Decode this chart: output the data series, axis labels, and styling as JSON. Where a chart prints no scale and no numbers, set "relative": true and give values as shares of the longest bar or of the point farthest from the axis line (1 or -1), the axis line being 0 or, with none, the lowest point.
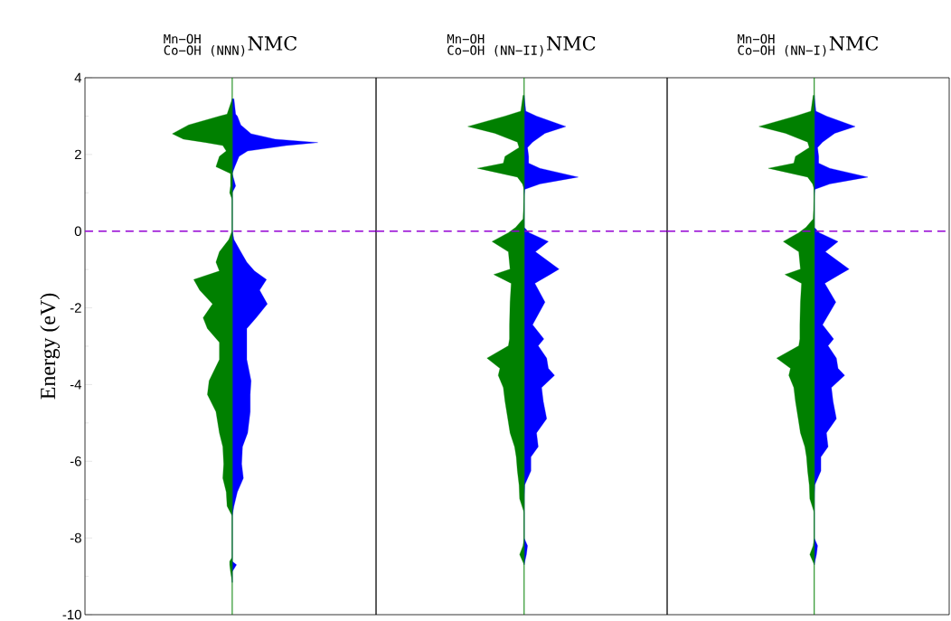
{
  "chart_data": [
    {
      "type": "area",
      "orientation": "horizontal",
      "relative": true,
      "title": "{}^{\\hbox{\\fontsize{14}{14}\\selectfont\\texttt{Mn−OH}}}_{\\hbox{\\fontsize{14}{14}\\selectfont\\texttt{Co−OH (NNN)}}}\\hbox{NMC}",
      "ylabel": "Energy (eV)",
      "ylim": [
        -10,
        4
      ],
      "yticks": [
        -10,
        -8,
        -6,
        -4,
        -2,
        0,
        2,
        4
      ],
      "tick_labels": "y",
      "x": [
        3.45,
        3.05,
        3.0,
        2.77,
        2.54,
        2.4,
        2.31,
        2.23,
        2.09,
        1.95,
        1.68,
        1.5,
        1.18,
        1.0,
        0.82,
        0.02,
        -0.22,
        -0.54,
        -0.81,
        -1.04,
        -1.26,
        -1.54,
        -1.9,
        -2.26,
        -2.54,
        -2.9,
        -3.35,
        -3.9,
        -4.26,
        -4.71,
        -5.26,
        -5.62,
        -6.07,
        -6.44,
        -6.8,
        -7.17,
        -7.43,
        -8.5,
        -8.61,
        -8.7,
        -8.88,
        -9.16
      ],
      "series": [
        {
          "color": "#008000",
          "values": [
            0,
            -0.06,
            -0.15,
            -0.51,
            -0.7,
            -0.57,
            -0.31,
            -0.11,
            -0.07,
            -0.15,
            -0.19,
            -0.02,
            -0.02,
            -0.03,
            0,
            0,
            -0.04,
            -0.15,
            -0.19,
            -0.15,
            -0.45,
            -0.38,
            -0.23,
            -0.34,
            -0.29,
            -0.15,
            -0.15,
            -0.27,
            -0.29,
            -0.19,
            -0.15,
            -0.11,
            -0.1,
            -0.11,
            -0.07,
            -0.06,
            0,
            0,
            -0.03,
            -0.03,
            -0.02,
            0
          ]
        },
        {
          "color": "#0000ff",
          "values": [
            0.02,
            0.04,
            0.06,
            0.1,
            0.22,
            0.5,
            1,
            0.63,
            0.18,
            0.08,
            0.03,
            0,
            0.04,
            0,
            0,
            0,
            0.02,
            0.1,
            0.17,
            0.26,
            0.4,
            0.32,
            0.41,
            0.28,
            0.17,
            0.17,
            0.17,
            0.22,
            0.21,
            0.21,
            0.18,
            0.12,
            0.11,
            0.13,
            0.06,
            0.02,
            0,
            0,
            0,
            0.05,
            0,
            0
          ]
        }
      ],
      "ref_lines": [
        {
          "axis": "x",
          "value": 0,
          "color": "#008000"
        },
        {
          "axis": "y",
          "value": 0,
          "color": "#9400d3",
          "line_style": "dashed"
        }
      ]
    },
    {
      "type": "area",
      "orientation": "horizontal",
      "relative": true,
      "title": "{}^{\\hbox{\\fontsize{14}{14}\\selectfont\\texttt{Mn−OH}}}_{\\hbox{\\fontsize{14}{14}\\selectfont\\texttt{Co−OH (NN−II)}}}\\hbox{NMC}",
      "ylim": [
        -10,
        4
      ],
      "tick_labels": false,
      "x": [
        3.54,
        3.13,
        3.0,
        2.73,
        2.55,
        2.32,
        2.18,
        1.95,
        1.77,
        1.64,
        1.41,
        1.23,
        1.09,
        0.91,
        0.32,
        0.1,
        -0.04,
        -0.27,
        -0.54,
        -0.99,
        -1.13,
        -1.36,
        -1.85,
        -2.44,
        -2.81,
        -2.99,
        -3.31,
        -3.58,
        -3.76,
        -4.08,
        -4.44,
        -4.89,
        -5.26,
        -5.62,
        -5.89,
        -6.25,
        -6.62,
        -6.98,
        -7.34,
        -8.0,
        -8.2,
        -8.43,
        -8.7
      ],
      "series": [
        {
          "color": "#008000",
          "values": [
            -0.02,
            -0.06,
            -0.34,
            -1,
            -0.52,
            -0.12,
            -0.09,
            -0.34,
            -0.37,
            -0.83,
            -0.12,
            -0.03,
            0,
            0,
            -0.02,
            -0.15,
            -0.28,
            -0.57,
            -0.28,
            -0.25,
            -0.54,
            -0.23,
            -0.25,
            -0.26,
            -0.26,
            -0.28,
            -0.66,
            -0.43,
            -0.46,
            -0.37,
            -0.34,
            -0.29,
            -0.25,
            -0.17,
            -0.14,
            -0.12,
            -0.09,
            -0.08,
            0,
            0,
            -0.02,
            -0.08,
            0
          ]
        },
        {
          "color": "#0000ff",
          "values": [
            0,
            0.03,
            0.22,
            0.74,
            0.37,
            0.15,
            0.06,
            0.08,
            0.08,
            0.28,
            0.96,
            0.28,
            0.01,
            0,
            0,
            0,
            0.09,
            0.43,
            0.2,
            0.62,
            0.46,
            0.19,
            0.37,
            0.15,
            0.35,
            0.25,
            0.4,
            0.43,
            0.54,
            0.31,
            0.34,
            0.4,
            0.22,
            0.25,
            0.12,
            0.12,
            0.01,
            0,
            0,
            0,
            0.06,
            0.04,
            0
          ]
        }
      ],
      "ref_lines": [
        {
          "axis": "x",
          "value": 0,
          "color": "#008000"
        },
        {
          "axis": "y",
          "value": 0,
          "color": "#9400d3",
          "line_style": "dashed"
        }
      ]
    },
    {
      "type": "area",
      "orientation": "horizontal",
      "relative": true,
      "title": "{}^{\\hbox{\\fontsize{14}{14}\\selectfont\\texttt{Mn−OH}}}_{\\hbox{\\fontsize{14}{14}\\selectfont\\texttt{Co−OH (NN−I)}}}\\hbox{NMC}",
      "ylim": [
        -10,
        4
      ],
      "tick_labels": false,
      "x": [
        3.54,
        3.13,
        3.0,
        2.73,
        2.55,
        2.32,
        2.18,
        1.95,
        1.77,
        1.64,
        1.41,
        1.23,
        1.09,
        0.91,
        0.32,
        0.1,
        -0.04,
        -0.27,
        -0.54,
        -0.99,
        -1.13,
        -1.36,
        -1.85,
        -2.44,
        -2.81,
        -2.99,
        -3.31,
        -3.58,
        -3.76,
        -4.08,
        -4.44,
        -4.89,
        -5.26,
        -5.62,
        -5.89,
        -6.25,
        -6.62,
        -6.98,
        -7.34,
        -8.0,
        -8.2,
        -8.43,
        -8.7
      ],
      "series": [
        {
          "color": "#008000",
          "values": [
            -0.02,
            -0.06,
            -0.34,
            -1,
            -0.52,
            -0.12,
            -0.09,
            -0.34,
            -0.37,
            -0.83,
            -0.12,
            -0.03,
            0,
            0,
            -0.02,
            -0.15,
            -0.28,
            -0.56,
            -0.28,
            -0.25,
            -0.53,
            -0.23,
            -0.25,
            -0.26,
            -0.26,
            -0.28,
            -0.68,
            -0.43,
            -0.46,
            -0.37,
            -0.34,
            -0.29,
            -0.25,
            -0.17,
            -0.14,
            -0.12,
            -0.09,
            -0.08,
            0,
            0,
            -0.02,
            -0.08,
            0
          ]
        },
        {
          "color": "#0000ff",
          "values": [
            0,
            0.03,
            0.22,
            0.74,
            0.37,
            0.15,
            0.06,
            0.08,
            0.08,
            0.28,
            0.97,
            0.28,
            0.01,
            0,
            0,
            0,
            0.09,
            0.43,
            0.2,
            0.63,
            0.46,
            0.19,
            0.39,
            0.15,
            0.35,
            0.25,
            0.4,
            0.43,
            0.55,
            0.31,
            0.34,
            0.4,
            0.22,
            0.25,
            0.12,
            0.12,
            0.01,
            0,
            0,
            0,
            0.06,
            0.04,
            0
          ]
        }
      ],
      "ref_lines": [
        {
          "axis": "x",
          "value": 0,
          "color": "#008000"
        },
        {
          "axis": "y",
          "value": 0,
          "color": "#9400d3",
          "line_style": "dashed"
        }
      ]
    }
  ]
}
